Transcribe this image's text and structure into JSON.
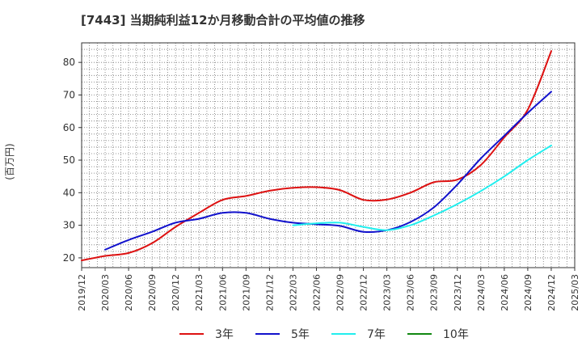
{
  "chart_data": {
    "type": "line",
    "title": "[7443]  当期純利益12か月移動合計の平均値の推移",
    "ylabel": "(百万円)",
    "xlabel": "",
    "ylim": [
      17,
      86
    ],
    "yticks": [
      20,
      30,
      40,
      50,
      60,
      70,
      80
    ],
    "xlim": [
      "2019-12",
      "2025-03"
    ],
    "x_ticks": [
      "2019/12",
      "2020/03",
      "2020/06",
      "2020/09",
      "2020/12",
      "2021/03",
      "2021/06",
      "2021/09",
      "2021/12",
      "2022/03",
      "2022/06",
      "2022/09",
      "2022/12",
      "2023/03",
      "2023/06",
      "2023/09",
      "2023/12",
      "2024/03",
      "2024/06",
      "2024/09",
      "2024/12",
      "2025/03"
    ],
    "grid": true,
    "legend_position": "bottom",
    "series": [
      {
        "name": "3年",
        "color": "#dd1111",
        "points": [
          [
            "2019-12",
            19.2
          ],
          [
            "2020-03",
            20.6
          ],
          [
            "2020-06",
            21.5
          ],
          [
            "2020-09",
            24.5
          ],
          [
            "2020-12",
            29.5
          ],
          [
            "2021-03",
            33.8
          ],
          [
            "2021-06",
            37.8
          ],
          [
            "2021-09",
            39.0
          ],
          [
            "2021-12",
            40.6
          ],
          [
            "2022-03",
            41.5
          ],
          [
            "2022-06",
            41.7
          ],
          [
            "2022-09",
            40.8
          ],
          [
            "2022-12",
            37.8
          ],
          [
            "2023-03",
            37.9
          ],
          [
            "2023-06",
            40.0
          ],
          [
            "2023-09",
            43.2
          ],
          [
            "2023-12",
            44.0
          ],
          [
            "2024-03",
            48.5
          ],
          [
            "2024-06",
            57.0
          ],
          [
            "2024-09",
            65.5
          ],
          [
            "2024-12",
            83.5
          ]
        ]
      },
      {
        "name": "5年",
        "color": "#1111cc",
        "points": [
          [
            "2020-03",
            22.5
          ],
          [
            "2020-06",
            25.5
          ],
          [
            "2020-09",
            28.0
          ],
          [
            "2020-12",
            30.8
          ],
          [
            "2021-03",
            32.0
          ],
          [
            "2021-06",
            33.8
          ],
          [
            "2021-09",
            33.8
          ],
          [
            "2021-12",
            32.0
          ],
          [
            "2022-03",
            30.8
          ],
          [
            "2022-06",
            30.3
          ],
          [
            "2022-09",
            29.8
          ],
          [
            "2022-12",
            28.0
          ],
          [
            "2023-03",
            28.5
          ],
          [
            "2023-06",
            31.0
          ],
          [
            "2023-09",
            35.5
          ],
          [
            "2023-12",
            42.5
          ],
          [
            "2024-03",
            50.5
          ],
          [
            "2024-06",
            57.5
          ],
          [
            "2024-09",
            64.5
          ],
          [
            "2024-12",
            71.0
          ]
        ]
      },
      {
        "name": "7年",
        "color": "#22eeee",
        "points": [
          [
            "2022-03",
            30.0
          ],
          [
            "2022-06",
            30.6
          ],
          [
            "2022-09",
            30.8
          ],
          [
            "2022-12",
            29.5
          ],
          [
            "2023-03",
            28.5
          ],
          [
            "2023-06",
            30.0
          ],
          [
            "2023-09",
            33.0
          ],
          [
            "2023-12",
            36.5
          ],
          [
            "2024-03",
            40.5
          ],
          [
            "2024-06",
            45.0
          ],
          [
            "2024-09",
            50.0
          ],
          [
            "2024-12",
            54.5
          ]
        ]
      },
      {
        "name": "10年",
        "color": "#118811",
        "points": []
      }
    ]
  }
}
